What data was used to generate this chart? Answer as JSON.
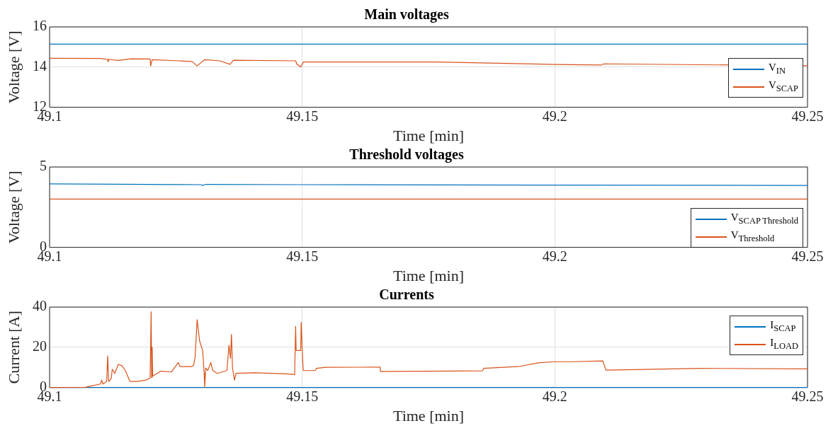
{
  "chart_data": [
    {
      "type": "line",
      "title": "Main voltages",
      "xlabel": "Time [min]",
      "ylabel": "Voltage [V]",
      "xlim": [
        49.1,
        49.25
      ],
      "xticks": [
        49.1,
        49.15,
        49.2,
        49.25
      ],
      "ylim": [
        12,
        16
      ],
      "yticks": [
        12,
        14,
        16
      ],
      "grid": true,
      "legend": "bottom right",
      "series": [
        {
          "name": "V$_{IN}$",
          "color": "#0072bd",
          "x": [
            49.1,
            49.15,
            49.2,
            49.25
          ],
          "values": [
            15.14,
            15.14,
            15.14,
            15.14
          ]
        },
        {
          "name": "V$_{SCAP}$",
          "color": "#d95319",
          "x": [
            49.1,
            49.1101,
            49.1115,
            49.1116,
            49.1117,
            49.1136,
            49.1161,
            49.1199,
            49.12,
            49.1203,
            49.1257,
            49.1282,
            49.1292,
            49.1307,
            49.1337,
            49.1357,
            49.1364,
            49.1487,
            49.1489,
            49.1497,
            49.1502,
            49.1637,
            49.1767,
            49.2,
            49.2092,
            49.2097,
            49.25
          ],
          "values": [
            14.44,
            14.43,
            14.38,
            14.26,
            14.38,
            14.33,
            14.41,
            14.4,
            14.06,
            14.37,
            14.31,
            14.28,
            14.06,
            14.37,
            14.31,
            14.14,
            14.34,
            14.31,
            14.16,
            14.0,
            14.25,
            14.25,
            14.25,
            14.13,
            14.1,
            14.16,
            14.07
          ]
        }
      ]
    },
    {
      "type": "line",
      "title": "Threshold voltages",
      "xlabel": "Time [min]",
      "ylabel": "Voltage [V]",
      "xlim": [
        49.1,
        49.25
      ],
      "xticks": [
        49.1,
        49.15,
        49.2,
        49.25
      ],
      "ylim": [
        0,
        5
      ],
      "yticks": [
        0,
        5
      ],
      "grid": true,
      "legend": "right",
      "series": [
        {
          "name": "V$_{SCAP Threshold}$",
          "color": "#0072bd",
          "x": [
            49.1,
            49.13,
            49.1302,
            49.131,
            49.15,
            49.2,
            49.25
          ],
          "values": [
            3.95,
            3.9,
            3.85,
            3.92,
            3.9,
            3.87,
            3.85
          ]
        },
        {
          "name": "V$_{Threshold}$",
          "color": "#d95319",
          "x": [
            49.1,
            49.25
          ],
          "values": [
            3.0,
            3.0
          ]
        }
      ]
    },
    {
      "type": "line",
      "title": "Currents",
      "xlabel": "Time [min]",
      "ylabel": "Current [A]",
      "xlim": [
        49.1,
        49.25
      ],
      "xticks": [
        49.1,
        49.15,
        49.2,
        49.25
      ],
      "ylim": [
        0,
        40
      ],
      "yticks": [
        0,
        20,
        40
      ],
      "grid": true,
      "legend": "top right",
      "series": [
        {
          "name": "I$_{SCAP}$",
          "color": "#0072bd",
          "x": [
            49.1,
            49.25
          ],
          "values": [
            0,
            0
          ]
        },
        {
          "name": "I$_{LOAD}$",
          "color": "#d95319",
          "x": [
            49.1,
            49.1071,
            49.1083,
            49.1101,
            49.1103,
            49.1106,
            49.1113,
            49.1115,
            49.1117,
            49.1122,
            49.1124,
            49.1129,
            49.1136,
            49.1143,
            49.115,
            49.1159,
            49.1174,
            49.1192,
            49.1199,
            49.1201,
            49.1202,
            49.1203,
            49.1204,
            49.1213,
            49.122,
            49.1241,
            49.1255,
            49.1258,
            49.1281,
            49.1285,
            49.1288,
            49.1292,
            49.1297,
            49.1303,
            49.1306,
            49.1307,
            49.1309,
            49.1313,
            49.1319,
            49.1323,
            49.1332,
            49.1351,
            49.1355,
            49.1358,
            49.136,
            49.1362,
            49.1366,
            49.1369,
            49.1407,
            49.1467,
            49.1485,
            49.1487,
            49.1488,
            49.1497,
            49.1498,
            49.15,
            49.1502,
            49.1526,
            49.1528,
            49.1547,
            49.1654,
            49.1655,
            49.1857,
            49.1859,
            49.1931,
            49.1969,
            49.2,
            49.2033,
            49.2095,
            49.2101,
            49.2291,
            49.25
          ],
          "values": [
            0,
            0.1,
            0.8,
            1.7,
            3.7,
            1.7,
            3,
            15.7,
            3,
            4.4,
            9,
            7,
            11.5,
            10.8,
            8.4,
            3,
            3,
            3.7,
            4.8,
            37.7,
            5,
            20,
            5.7,
            7,
            8.1,
            7.7,
            12.4,
            10.4,
            10.4,
            11,
            15,
            33.7,
            23,
            18.4,
            7,
            0.1,
            9.7,
            8.4,
            12.4,
            8.4,
            7,
            8.4,
            21,
            14.4,
            26.4,
            9.7,
            3.7,
            7,
            7.3,
            6.8,
            6.4,
            30.4,
            18.4,
            18.4,
            32.4,
            18.4,
            8.4,
            8.4,
            9.5,
            10,
            10.1,
            7.9,
            8.3,
            9.5,
            10.5,
            12.3,
            12.8,
            12.8,
            13.2,
            8.6,
            9.5,
            9.2
          ]
        }
      ]
    }
  ]
}
